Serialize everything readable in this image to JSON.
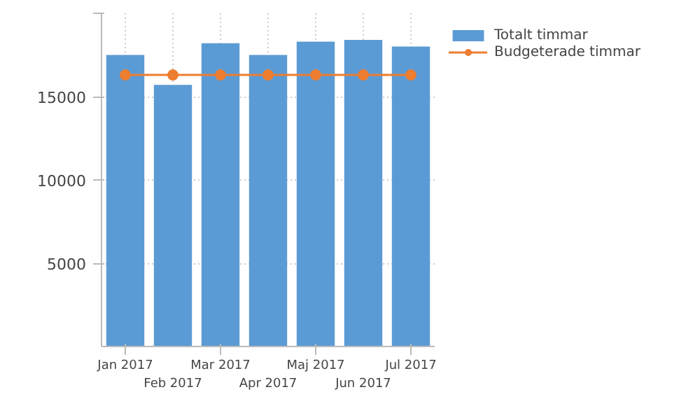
{
  "chart_data": {
    "type": "bar",
    "categories": [
      "Jan 2017",
      "Feb 2017",
      "Mar 2017",
      "Apr 2017",
      "Maj 2017",
      "Jun 2017",
      "Jul 2017"
    ],
    "series": [
      {
        "name": "Totalt timmar",
        "color": "#5b9bd5",
        "values": [
          17500,
          15700,
          18200,
          17500,
          18300,
          18400,
          18000
        ]
      },
      {
        "name": "Budgeterade timmar",
        "type": "line",
        "color": "#ed7d31",
        "marker": "circle",
        "values": [
          16300,
          16300,
          16300,
          16300,
          16300,
          16300,
          16300
        ]
      }
    ],
    "ylim": [
      0,
      20000
    ],
    "yticks": [
      5000,
      10000,
      15000,
      {
        "value": 20000,
        "label": null
      }
    ],
    "grid": true,
    "legend": "top right"
  }
}
